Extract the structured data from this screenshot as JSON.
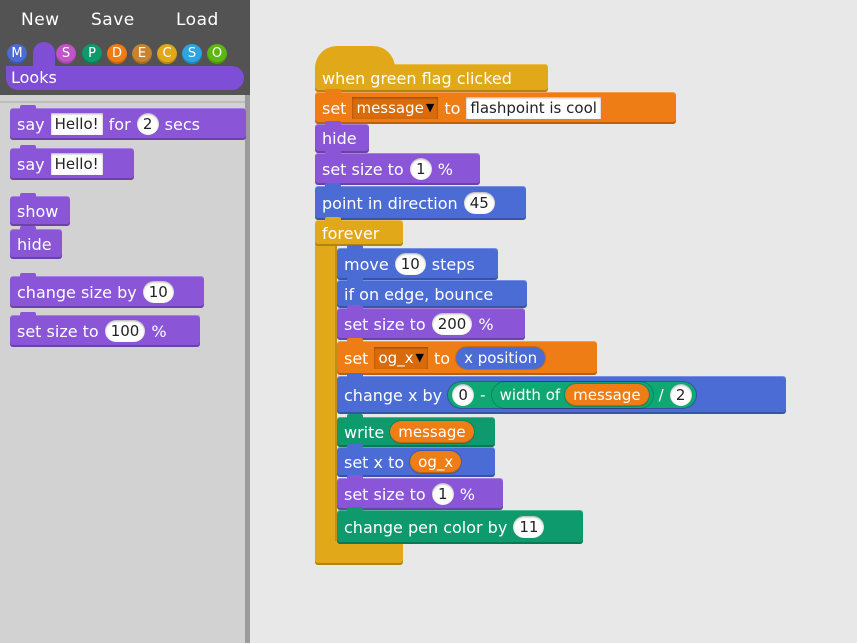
{
  "menu": {
    "new": "New",
    "save": "Save",
    "load": "Load"
  },
  "categories": [
    {
      "letter": "M",
      "color": "#4a6cd4"
    },
    {
      "letter": "",
      "color": "#7f4ed6"
    },
    {
      "letter": "S",
      "color": "#c353c9"
    },
    {
      "letter": "P",
      "color": "#0e9a6c"
    },
    {
      "letter": "D",
      "color": "#ee7d16"
    },
    {
      "letter": "E",
      "color": "#c88330"
    },
    {
      "letter": "C",
      "color": "#e1a91a"
    },
    {
      "letter": "S",
      "color": "#2ca5e2"
    },
    {
      "letter": "O",
      "color": "#5cb712"
    }
  ],
  "category_header": "Looks",
  "palette": {
    "say_for": {
      "say": "say",
      "text": "Hello!",
      "for": "for",
      "num": "2",
      "secs": "secs"
    },
    "say": {
      "say": "say",
      "text": "Hello!"
    },
    "show": "show",
    "hide": "hide",
    "change_size": {
      "label": "change size by",
      "num": "10"
    },
    "set_size": {
      "label": "set size to",
      "num": "100",
      "pct": "%"
    }
  },
  "script": {
    "hat": "when green flag clicked",
    "set_message": {
      "set": "set",
      "var": "message",
      "to": "to",
      "value": "flashpoint is cool"
    },
    "hide": "hide",
    "set_size_1": {
      "label": "set size to",
      "num": "1",
      "pct": "%"
    },
    "point": {
      "label": "point in direction",
      "num": "45"
    },
    "forever": "forever",
    "move": {
      "move": "move",
      "num": "10",
      "steps": "steps"
    },
    "bounce": "if on edge, bounce",
    "set_size_200": {
      "label": "set size to",
      "num": "200",
      "pct": "%"
    },
    "set_ogx": {
      "set": "set",
      "var": "og_x",
      "to": "to",
      "value": "x position"
    },
    "change_x": {
      "label": "change x by",
      "a": "0",
      "minus": "-",
      "width_of": "width of",
      "var": "message",
      "div": "/",
      "b": "2"
    },
    "write": {
      "label": "write",
      "var": "message"
    },
    "set_x": {
      "label": "set x to",
      "var": "og_x"
    },
    "set_size_1b": {
      "label": "set size to",
      "num": "1",
      "pct": "%"
    },
    "pen_color": {
      "label": "change pen color by",
      "num": "11"
    }
  }
}
